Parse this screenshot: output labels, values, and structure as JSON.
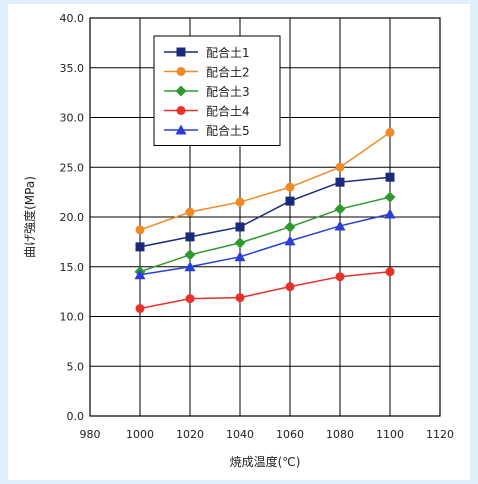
{
  "chart_data": {
    "type": "line",
    "title": "",
    "xlabel": "焼成温度(℃)",
    "ylabel": "曲げ強度(MPa)",
    "xlim": [
      980,
      1120
    ],
    "ylim": [
      0,
      40
    ],
    "x_ticks": [
      980,
      1000,
      1020,
      1040,
      1060,
      1080,
      1100,
      1120
    ],
    "x_tick_labels": [
      "980",
      "1000",
      "1020",
      "1040",
      "1060",
      "1080",
      "1100",
      "1120"
    ],
    "y_ticks": [
      0,
      5,
      10,
      15,
      20,
      25,
      30,
      35,
      40
    ],
    "y_tick_labels": [
      "0.0",
      "5.0",
      "10.0",
      "15.0",
      "20.0",
      "25.0",
      "30.0",
      "35.0",
      "40.0"
    ],
    "grid": true,
    "legend_position": "top-left",
    "x": [
      1000,
      1020,
      1040,
      1060,
      1080,
      1100
    ],
    "series": [
      {
        "name": "配合土1",
        "color": "#1a2a7a",
        "marker": "square",
        "values": [
          17.0,
          18.0,
          19.0,
          21.6,
          23.5,
          24.0
        ]
      },
      {
        "name": "配合土2",
        "color": "#f08a24",
        "marker": "circle",
        "values": [
          18.7,
          20.5,
          21.5,
          23.0,
          25.0,
          28.5
        ]
      },
      {
        "name": "配合土3",
        "color": "#2e9a2e",
        "marker": "diamond",
        "values": [
          14.5,
          16.2,
          17.4,
          19.0,
          20.8,
          22.0
        ]
      },
      {
        "name": "配合土4",
        "color": "#e8312a",
        "marker": "circle",
        "values": [
          10.8,
          11.8,
          11.9,
          13.0,
          14.0,
          14.5
        ]
      },
      {
        "name": "配合土5",
        "color": "#2a3fd8",
        "marker": "triangle",
        "values": [
          14.2,
          15.0,
          16.0,
          17.6,
          19.1,
          20.3
        ]
      }
    ]
  }
}
